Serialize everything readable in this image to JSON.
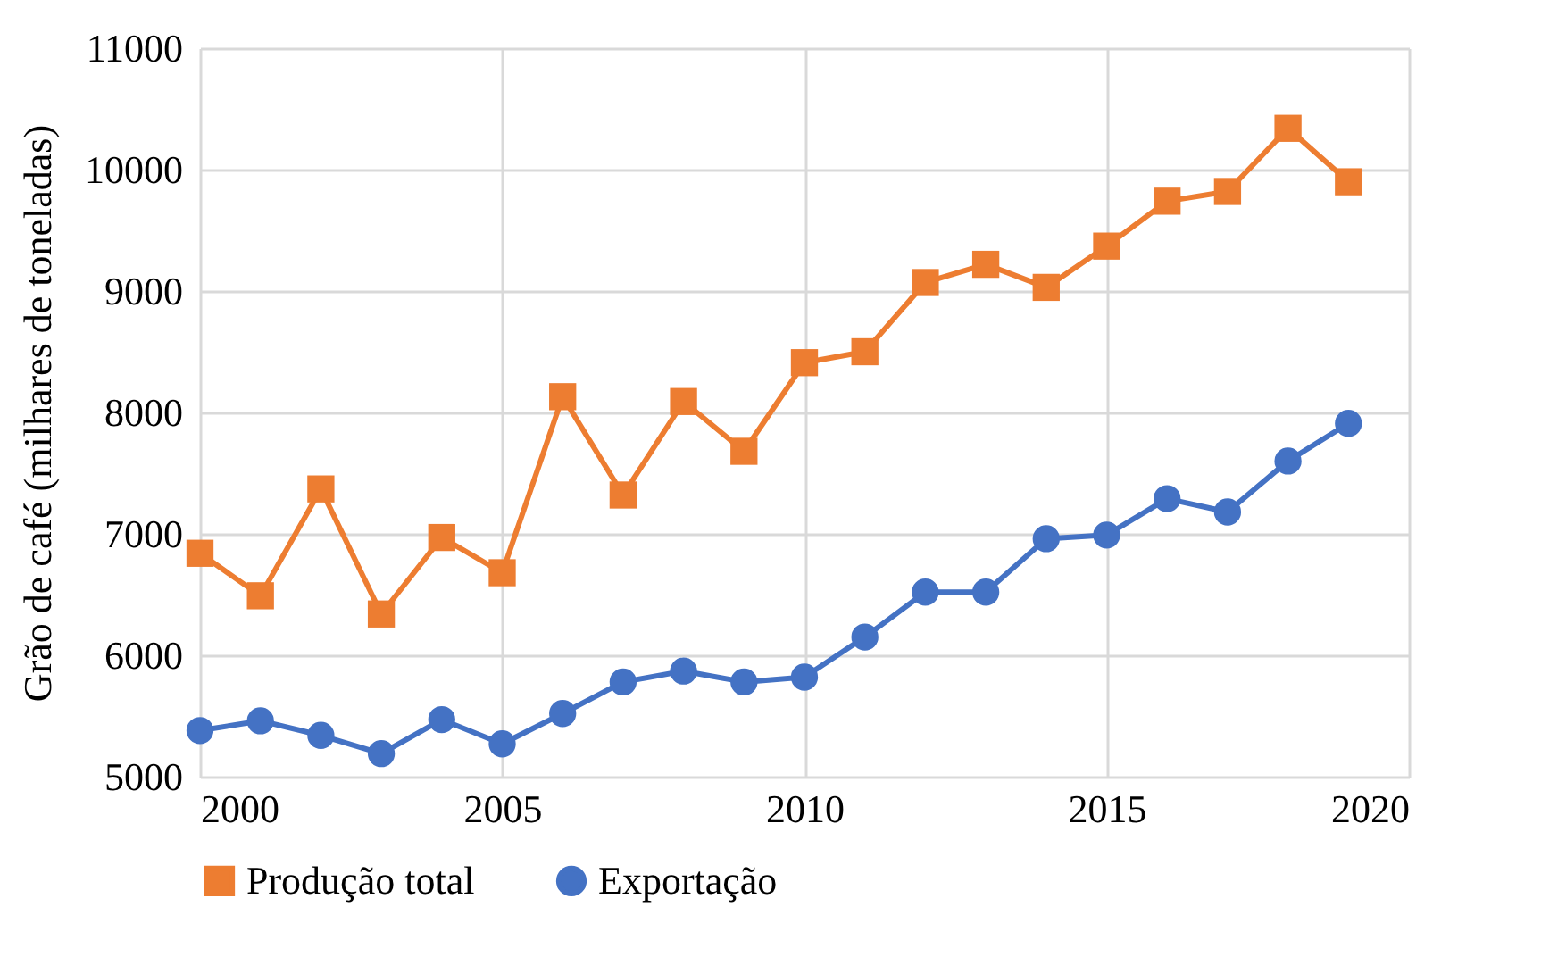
{
  "chart_data": {
    "type": "line",
    "ylabel": "Grão de café (milhares de toneladas)",
    "x": [
      2000,
      2001,
      2002,
      2003,
      2004,
      2005,
      2006,
      2007,
      2008,
      2009,
      2010,
      2011,
      2012,
      2013,
      2014,
      2015,
      2016,
      2017,
      2018,
      2019
    ],
    "series": [
      {
        "name": "Produção total",
        "color": "#ed7d31",
        "marker": "square",
        "values": [
          6840,
          6490,
          7370,
          6340,
          6970,
          6680,
          8130,
          7320,
          8090,
          7680,
          8410,
          8500,
          9070,
          9220,
          9030,
          9370,
          9740,
          9820,
          10340,
          9900
        ]
      },
      {
        "name": "Exportação",
        "color": "#4472c4",
        "marker": "circle",
        "values": [
          5380,
          5460,
          5340,
          5190,
          5470,
          5270,
          5520,
          5780,
          5870,
          5780,
          5820,
          6150,
          6520,
          6520,
          6960,
          6990,
          7290,
          7180,
          7600,
          7910
        ]
      }
    ],
    "xlim": [
      2000,
      2020
    ],
    "xticks": [
      2000,
      2005,
      2010,
      2015,
      2020
    ],
    "ylim": [
      5000,
      11000
    ],
    "yticks": [
      5000,
      6000,
      7000,
      8000,
      9000,
      10000,
      11000
    ],
    "grid": true,
    "legend": "bottom"
  }
}
